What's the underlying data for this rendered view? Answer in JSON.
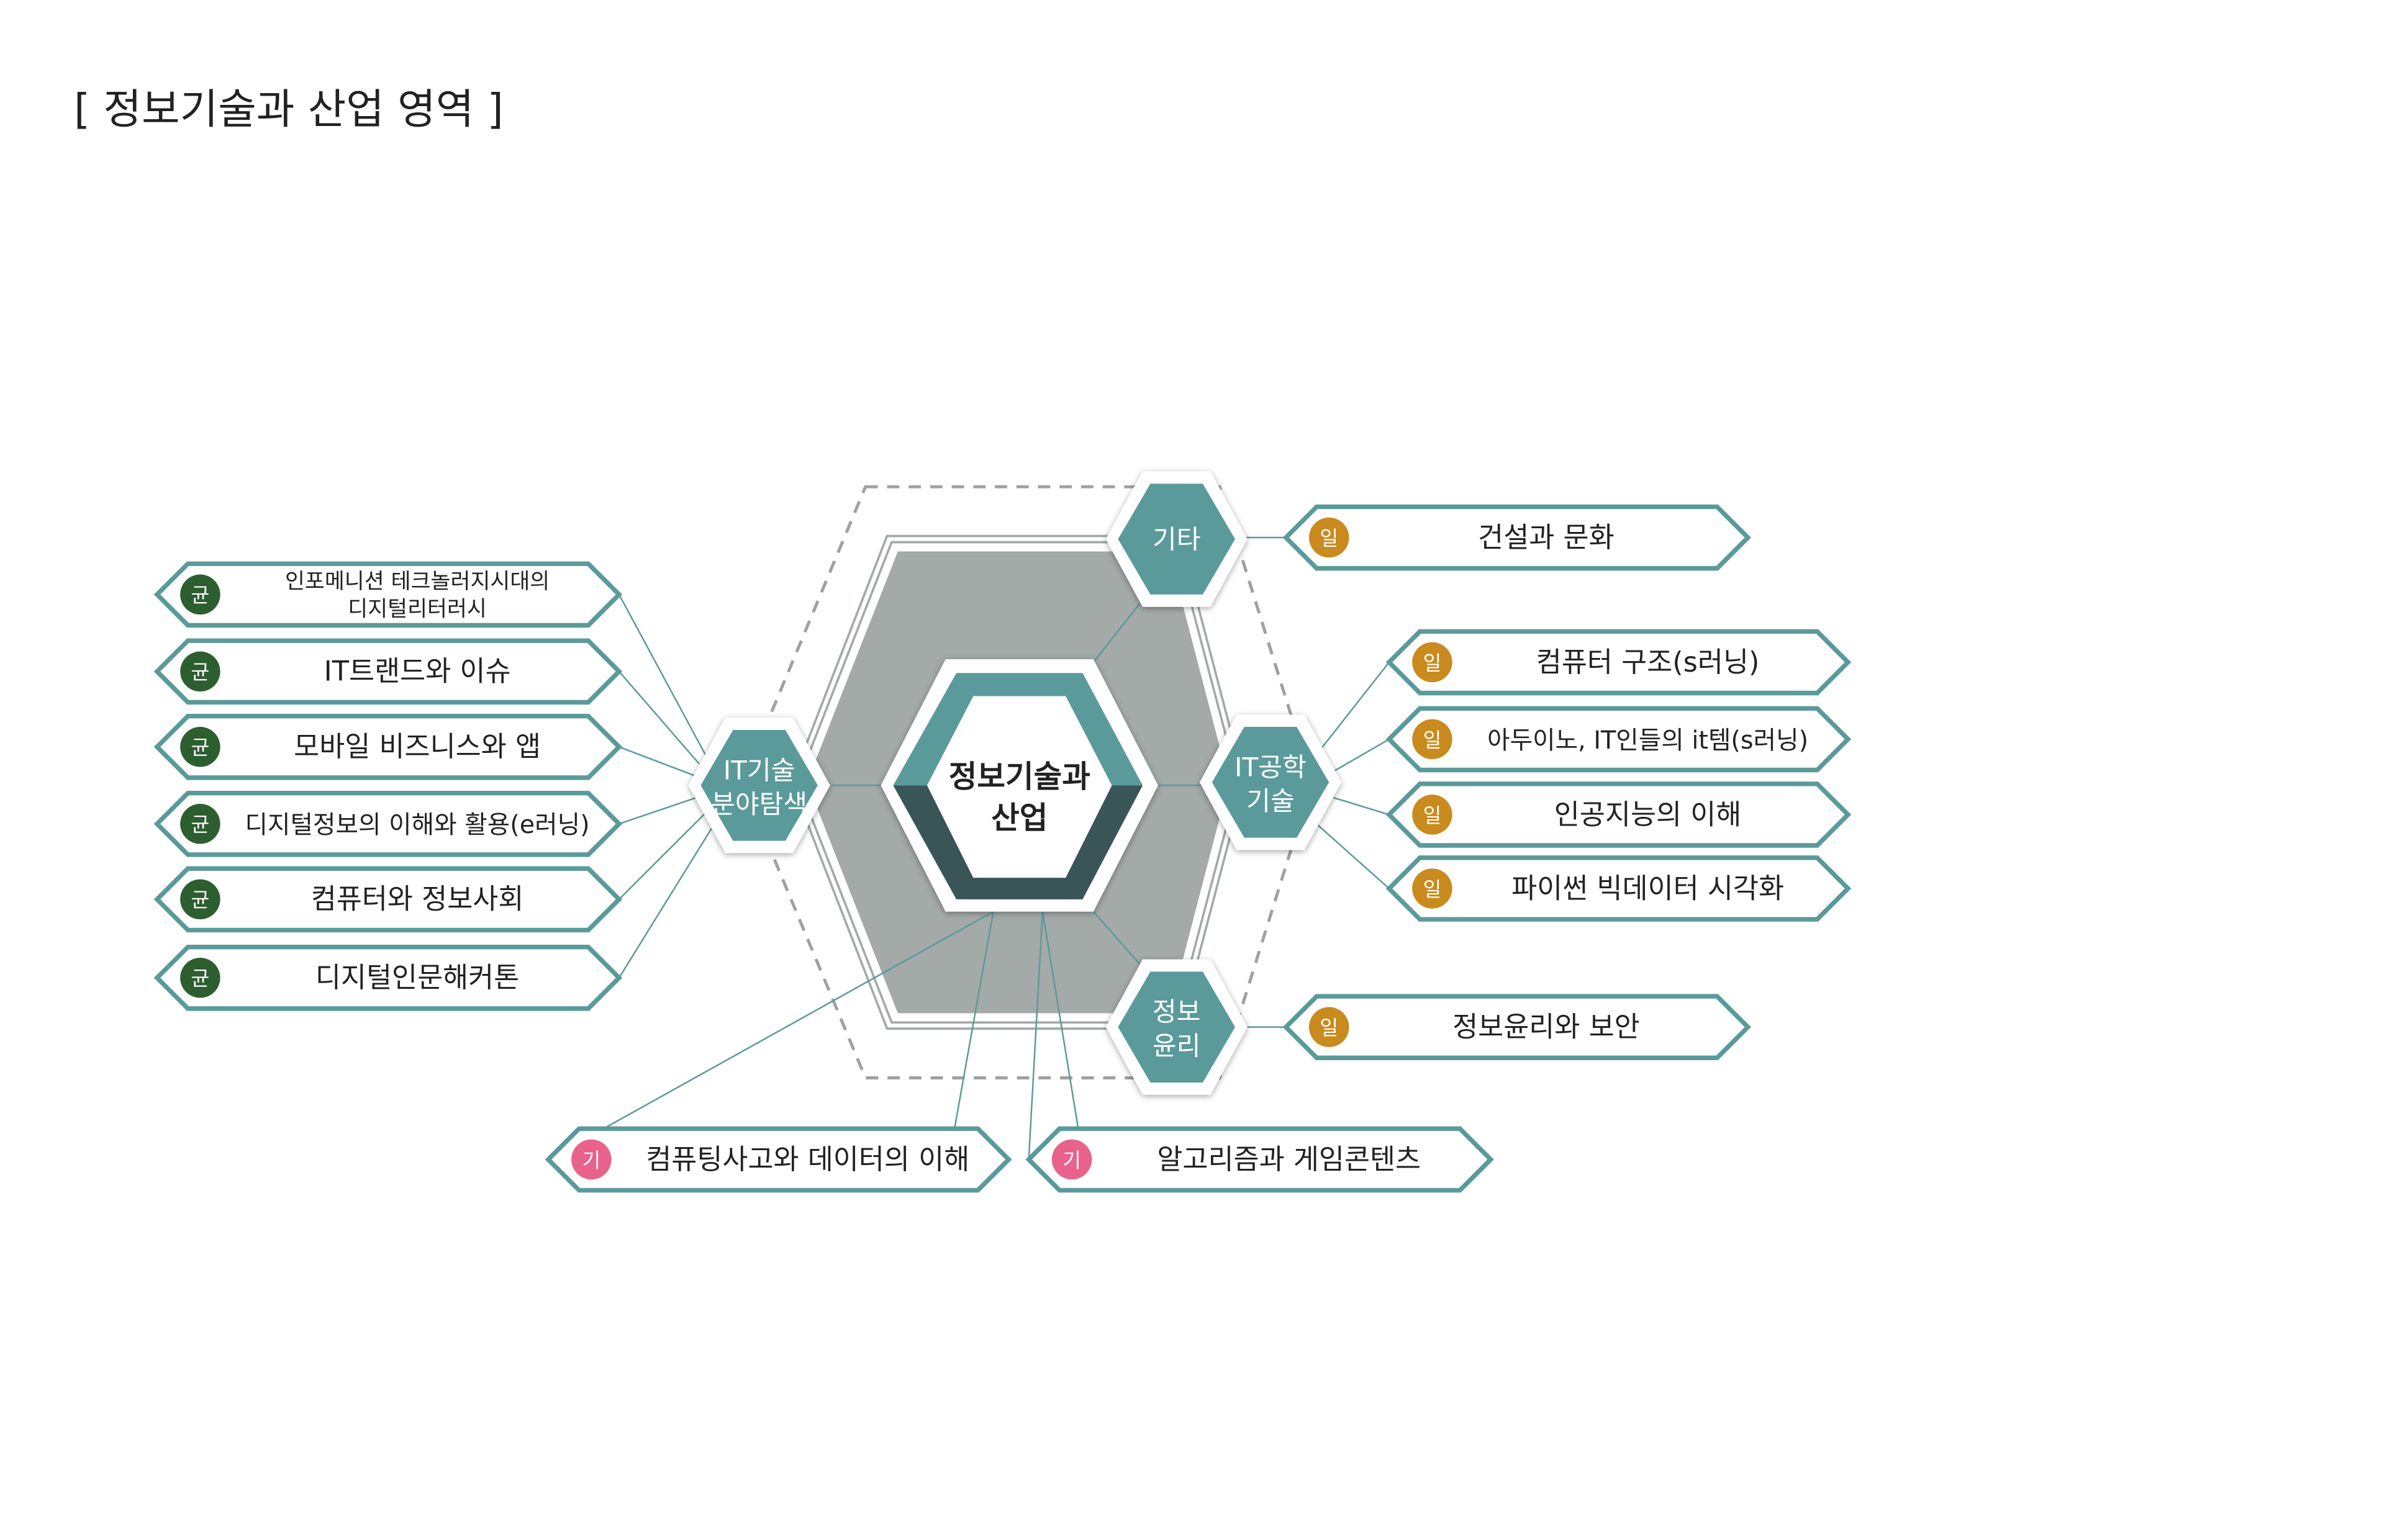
{
  "title": "[ 정보기술과 산업 영역 ]",
  "colors": {
    "teal": "#5b9a9b",
    "dark_teal": "#3a5558",
    "gray_hex": "#a3aaa8",
    "green_badge": "#2d5e2f",
    "orange_badge": "#c98a1e",
    "pink_badge": "#e8628c"
  },
  "center": {
    "line1": "정보기술과",
    "line2": "산업"
  },
  "hubs": {
    "etc": {
      "line1": "기타",
      "line2": ""
    },
    "it_field": {
      "line1": "IT기술",
      "line2": "분야탐색"
    },
    "it_eng": {
      "line1": "IT공학",
      "line2": "기술"
    },
    "ethics": {
      "line1": "정보",
      "line2": "윤리"
    }
  },
  "left_items": [
    {
      "badge": "균",
      "line1": "인포메니션 테크놀러지시대의",
      "line2": "디지털리터러시"
    },
    {
      "badge": "균",
      "line1": "IT트랜드와 이슈",
      "line2": ""
    },
    {
      "badge": "균",
      "line1": "모바일 비즈니스와 앱",
      "line2": ""
    },
    {
      "badge": "균",
      "line1": "디지털정보의 이해와 활용(e러닝)",
      "line2": ""
    },
    {
      "badge": "균",
      "line1": "컴퓨터와 정보사회",
      "line2": ""
    },
    {
      "badge": "균",
      "line1": "디지털인문해커톤",
      "line2": ""
    }
  ],
  "etc_items": [
    {
      "badge": "일",
      "line1": "건설과 문화",
      "line2": ""
    }
  ],
  "it_eng_items": [
    {
      "badge": "일",
      "line1": "컴퓨터 구조(s러닝)",
      "line2": ""
    },
    {
      "badge": "일",
      "line1": "아두이노, IT인들의 it템(s러닝)",
      "line2": ""
    },
    {
      "badge": "일",
      "line1": "인공지능의 이해",
      "line2": ""
    },
    {
      "badge": "일",
      "line1": "파이썬 빅데이터 시각화",
      "line2": ""
    }
  ],
  "ethics_items": [
    {
      "badge": "일",
      "line1": "정보윤리와 보안",
      "line2": ""
    }
  ],
  "bottom_items": [
    {
      "badge": "기",
      "line1": "컴퓨팅사고와 데이터의 이해",
      "line2": ""
    },
    {
      "badge": "기",
      "line1": "알고리즘과 게임콘텐츠",
      "line2": ""
    }
  ]
}
